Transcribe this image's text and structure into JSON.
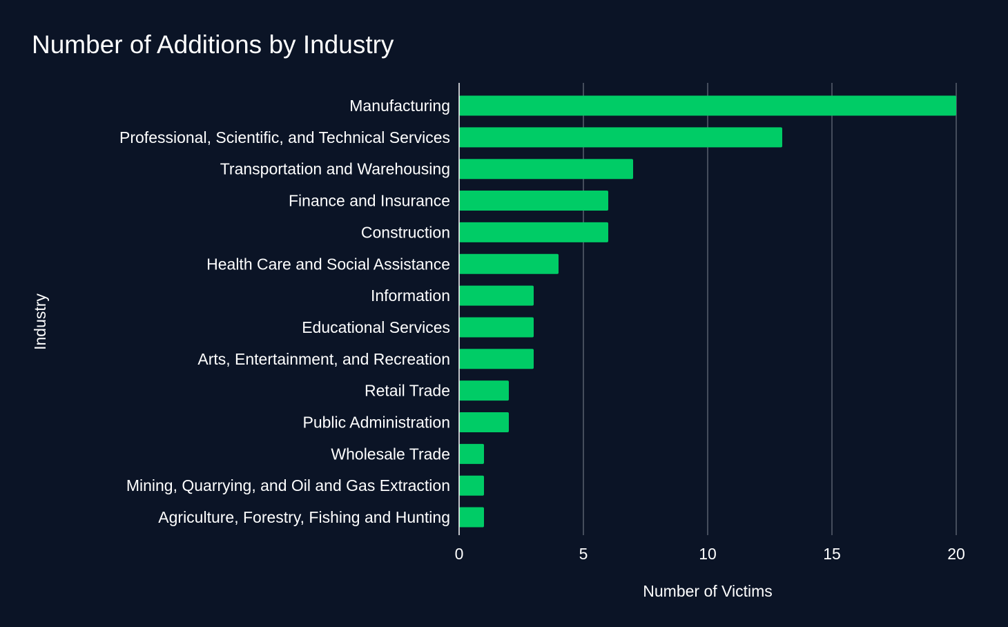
{
  "colors": {
    "background": "#0b1426",
    "bar": "#00cc66",
    "grid": "#59606e",
    "axis": "#ffffff",
    "text": "#ffffff"
  },
  "chart_data": {
    "type": "bar",
    "orientation": "horizontal",
    "title": "Number of Additions by Industry",
    "xlabel": "Number of Victims",
    "ylabel": "Industry",
    "xlim": [
      0,
      20
    ],
    "xticks": [
      0,
      5,
      10,
      15,
      20
    ],
    "grid": "vertical",
    "categories": [
      "Manufacturing",
      "Professional, Scientific, and Technical Services",
      "Transportation and Warehousing",
      "Finance and Insurance",
      "Construction",
      "Health Care and Social Assistance",
      "Information",
      "Educational Services",
      "Arts, Entertainment, and Recreation",
      "Retail Trade",
      "Public Administration",
      "Wholesale Trade",
      "Mining, Quarrying, and Oil and Gas Extraction",
      "Agriculture, Forestry, Fishing and Hunting"
    ],
    "values": [
      20,
      13,
      7,
      6,
      6,
      4,
      3,
      3,
      3,
      2,
      2,
      1,
      1,
      1
    ]
  }
}
